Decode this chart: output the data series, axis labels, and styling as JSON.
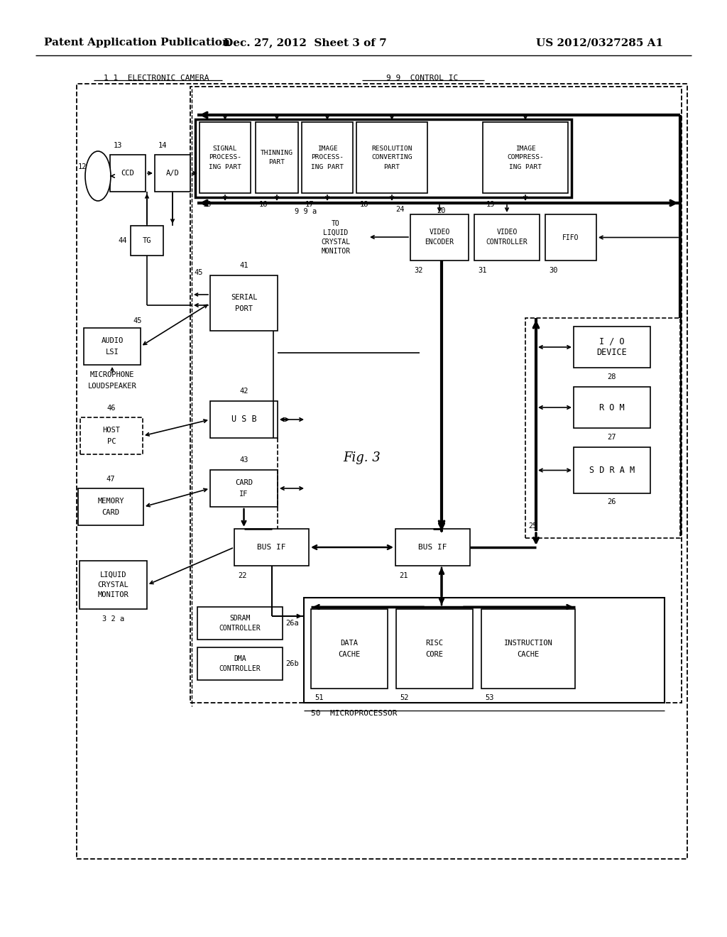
{
  "title_left": "Patent Application Publication",
  "title_mid": "Dec. 27, 2012  Sheet 3 of 7",
  "title_right": "US 2012/0327285 A1",
  "fig_label": "Fig. 3",
  "bg_color": "#ffffff"
}
